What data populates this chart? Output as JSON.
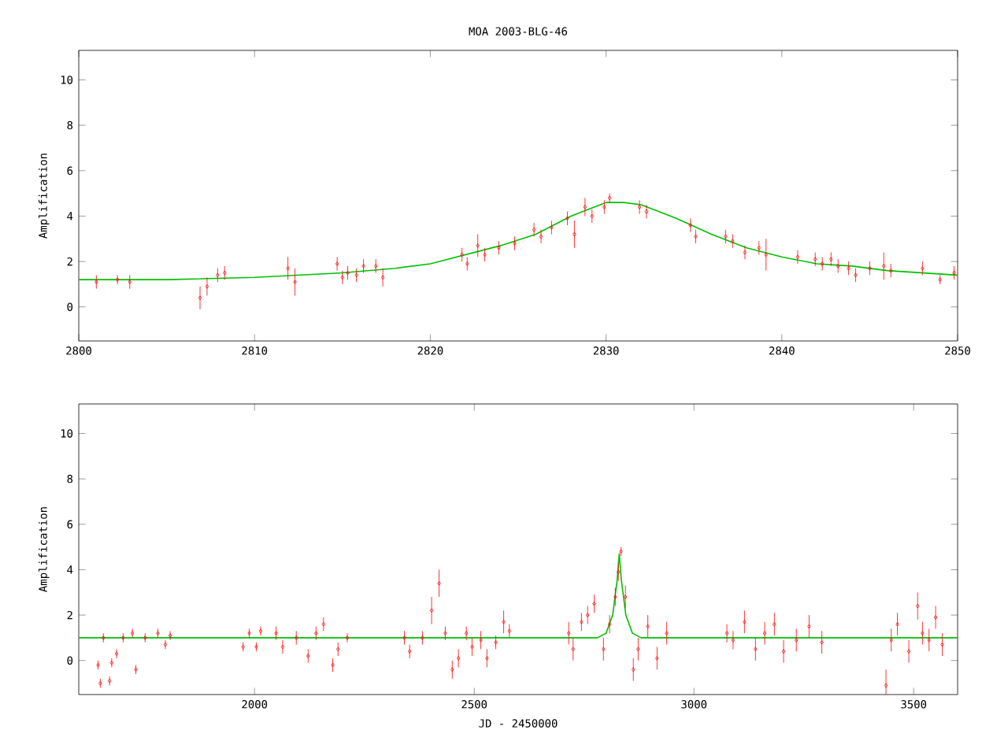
{
  "chart_data": [
    {
      "type": "scatter",
      "title": "MOA 2003-BLG-46",
      "ylabel": "Amplification",
      "xlim": [
        2800,
        2850
      ],
      "xticks": [
        2800,
        2810,
        2820,
        2830,
        2840,
        2850
      ],
      "ylim": [
        -1.5,
        11.3
      ],
      "yticks": [
        0,
        2,
        4,
        6,
        8,
        10
      ],
      "marker": "diamond",
      "series": [
        {
          "color": "#ff0000",
          "x": [
            2801.0,
            2802.2,
            2802.9,
            2806.9,
            2807.3,
            2807.9,
            2808.3,
            2811.9,
            2812.3,
            2814.7,
            2815.0,
            2815.3,
            2815.8,
            2816.2,
            2816.9,
            2817.3,
            2821.8,
            2822.1,
            2822.7,
            2823.1,
            2823.9,
            2824.8,
            2825.9,
            2826.3,
            2826.9,
            2827.8,
            2828.2,
            2828.8,
            2829.2,
            2830.2,
            2829.9,
            2831.9,
            2832.3,
            2834.8,
            2835.1,
            2836.8,
            2837.2,
            2837.9,
            2838.7,
            2839.1,
            2840.9,
            2841.9,
            2842.3,
            2842.8,
            2843.2,
            2843.8,
            2844.2,
            2845.0,
            2845.8,
            2846.2,
            2848.0,
            2849.0,
            2849.8
          ],
          "values": [
            1.1,
            1.2,
            1.1,
            0.4,
            0.9,
            1.4,
            1.5,
            1.7,
            1.1,
            1.9,
            1.3,
            1.5,
            1.4,
            1.8,
            1.8,
            1.3,
            2.3,
            1.9,
            2.7,
            2.3,
            2.6,
            2.8,
            3.4,
            3.1,
            3.5,
            3.9,
            3.2,
            4.4,
            4.0,
            4.8,
            4.4,
            4.4,
            4.2,
            3.6,
            3.1,
            3.1,
            2.9,
            2.4,
            2.6,
            2.3,
            2.2,
            2.1,
            1.9,
            2.1,
            1.8,
            1.7,
            1.4,
            1.7,
            1.8,
            1.6,
            1.7,
            1.2,
            1.5
          ],
          "errors": [
            0.3,
            0.2,
            0.3,
            0.5,
            0.4,
            0.3,
            0.3,
            0.5,
            0.6,
            0.3,
            0.3,
            0.3,
            0.3,
            0.3,
            0.3,
            0.4,
            0.3,
            0.3,
            0.5,
            0.3,
            0.3,
            0.3,
            0.3,
            0.3,
            0.3,
            0.3,
            0.6,
            0.4,
            0.3,
            0.2,
            0.3,
            0.3,
            0.3,
            0.3,
            0.3,
            0.3,
            0.3,
            0.3,
            0.3,
            0.7,
            0.3,
            0.3,
            0.3,
            0.3,
            0.3,
            0.3,
            0.3,
            0.3,
            0.6,
            0.3,
            0.3,
            0.2,
            0.3
          ]
        },
        {
          "type": "line",
          "marker": "none",
          "line_style": "solid",
          "color": "#00c000",
          "x": [
            2800,
            2805,
            2810,
            2815,
            2818,
            2820,
            2822,
            2824,
            2826,
            2828,
            2829,
            2830,
            2831,
            2832,
            2834,
            2836,
            2838,
            2840,
            2842,
            2844,
            2846,
            2848,
            2850
          ],
          "values": [
            1.2,
            1.2,
            1.3,
            1.5,
            1.7,
            1.9,
            2.3,
            2.7,
            3.2,
            4.0,
            4.3,
            4.6,
            4.6,
            4.5,
            3.9,
            3.2,
            2.6,
            2.2,
            1.9,
            1.8,
            1.6,
            1.5,
            1.4
          ]
        }
      ]
    },
    {
      "type": "scatter",
      "xlabel": "JD - 2450000",
      "ylabel": "Amplification",
      "xlim": [
        1600,
        3600
      ],
      "xticks": [
        2000,
        2500,
        3000,
        3500
      ],
      "ylim": [
        -1.5,
        11.3
      ],
      "yticks": [
        0,
        2,
        4,
        6,
        8,
        10
      ],
      "marker": "diamond",
      "series": [
        {
          "color": "#ff0000",
          "x": [
            1644,
            1649,
            1670,
            1675,
            1686,
            1656,
            1701,
            1722,
            1730,
            1751,
            1780,
            1797,
            1808,
            1974,
            1988,
            2004,
            2014,
            2049,
            2064,
            2095,
            2122,
            2140,
            2157,
            2178,
            2190,
            2211,
            2341,
            2353,
            2382,
            2403,
            2420,
            2434,
            2450,
            2464,
            2482,
            2495,
            2515,
            2529,
            2549,
            2567,
            2580,
            2715,
            2725,
            2744,
            2758,
            2773,
            2794,
            2808,
            2821,
            2828,
            2834,
            2844,
            2862,
            2873,
            2895,
            2916,
            2938,
            3075,
            3089,
            3115,
            3140,
            3161,
            3183,
            3204,
            3233,
            3262,
            3291,
            3437,
            3449,
            3463,
            3489,
            3509,
            3520,
            3535,
            3550,
            3565
          ],
          "values": [
            -0.2,
            -1.0,
            -0.9,
            -0.1,
            0.3,
            1.0,
            1.0,
            1.2,
            -0.4,
            1.0,
            1.2,
            0.7,
            1.1,
            0.6,
            1.2,
            0.6,
            1.3,
            1.2,
            0.6,
            1.0,
            0.2,
            1.2,
            1.6,
            -0.2,
            0.5,
            1.0,
            1.0,
            0.4,
            1.0,
            2.2,
            3.4,
            1.2,
            -0.4,
            0.1,
            1.2,
            0.6,
            0.9,
            0.1,
            0.8,
            1.7,
            1.3,
            1.2,
            0.5,
            1.7,
            2.0,
            2.5,
            0.5,
            1.6,
            2.8,
            3.9,
            4.8,
            2.8,
            -0.4,
            0.5,
            1.5,
            0.1,
            1.2,
            1.2,
            0.9,
            1.7,
            0.5,
            1.2,
            1.6,
            0.4,
            0.9,
            1.5,
            0.8,
            -1.1,
            0.9,
            1.6,
            0.4,
            2.4,
            1.2,
            0.9,
            1.9,
            0.7
          ],
          "errors": [
            0.2,
            0.2,
            0.2,
            0.2,
            0.2,
            0.2,
            0.2,
            0.2,
            0.2,
            0.2,
            0.2,
            0.2,
            0.2,
            0.2,
            0.2,
            0.2,
            0.2,
            0.3,
            0.3,
            0.3,
            0.3,
            0.3,
            0.3,
            0.3,
            0.3,
            0.2,
            0.3,
            0.3,
            0.3,
            0.6,
            0.6,
            0.3,
            0.4,
            0.4,
            0.3,
            0.4,
            0.4,
            0.4,
            0.3,
            0.5,
            0.3,
            0.5,
            0.5,
            0.4,
            0.4,
            0.4,
            0.5,
            0.4,
            0.4,
            0.4,
            0.2,
            0.5,
            0.5,
            0.5,
            0.5,
            0.5,
            0.5,
            0.4,
            0.4,
            0.5,
            0.5,
            0.5,
            0.5,
            0.5,
            0.5,
            0.5,
            0.5,
            0.7,
            0.5,
            0.5,
            0.5,
            0.6,
            0.5,
            0.5,
            0.5,
            0.5
          ]
        },
        {
          "type": "line",
          "marker": "none",
          "line_style": "solid",
          "color": "#00c000",
          "x": [
            1600,
            2780,
            2800,
            2815,
            2825,
            2830,
            2835,
            2845,
            2860,
            2880,
            3600
          ],
          "values": [
            1.0,
            1.0,
            1.2,
            2.0,
            3.5,
            4.7,
            3.5,
            2.0,
            1.2,
            1.0,
            1.0
          ]
        }
      ]
    }
  ]
}
